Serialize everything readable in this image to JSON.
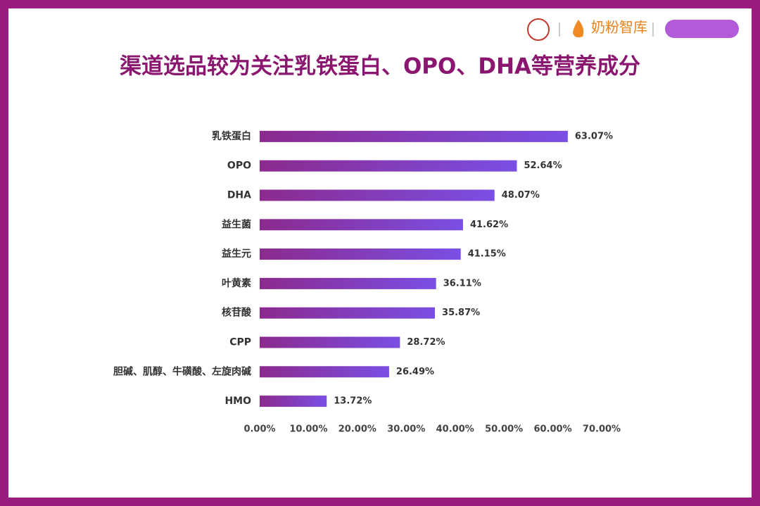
{
  "header": {
    "logos": [
      "奶粉智库"
    ]
  },
  "chart_data": {
    "type": "hbar",
    "title": "渠道选品较为关注乳铁蛋白、OPO、DHA等营养成分",
    "categories": [
      "乳铁蛋白",
      "OPO",
      "DHA",
      "益生菌",
      "益生元",
      "叶黄素",
      "核苷酸",
      "CPP",
      "胆碱、肌醇、牛磺酸、左旋肉碱",
      "HMO"
    ],
    "values": [
      63.07,
      52.64,
      48.07,
      41.62,
      41.15,
      36.11,
      35.87,
      28.72,
      26.49,
      13.72
    ],
    "value_labels": [
      "63.07%",
      "52.64%",
      "48.07%",
      "41.62%",
      "41.15%",
      "36.11%",
      "35.87%",
      "28.72%",
      "26.49%",
      "13.72%"
    ],
    "color": [
      "#8c2a8e",
      "#7a4fe4"
    ],
    "xlim": [
      0,
      70
    ],
    "xticks": [
      {
        "value": 0,
        "label": "0.00%"
      },
      {
        "value": 10,
        "label": "10.00%"
      },
      {
        "value": 20,
        "label": "20.00%"
      },
      {
        "value": 30,
        "label": "30.00%"
      },
      {
        "value": 40,
        "label": "40.00%"
      },
      {
        "value": 50,
        "label": "50.00%"
      },
      {
        "value": 60,
        "label": "60.00%"
      },
      {
        "value": 70,
        "label": "70.00%"
      }
    ],
    "grid": false
  }
}
